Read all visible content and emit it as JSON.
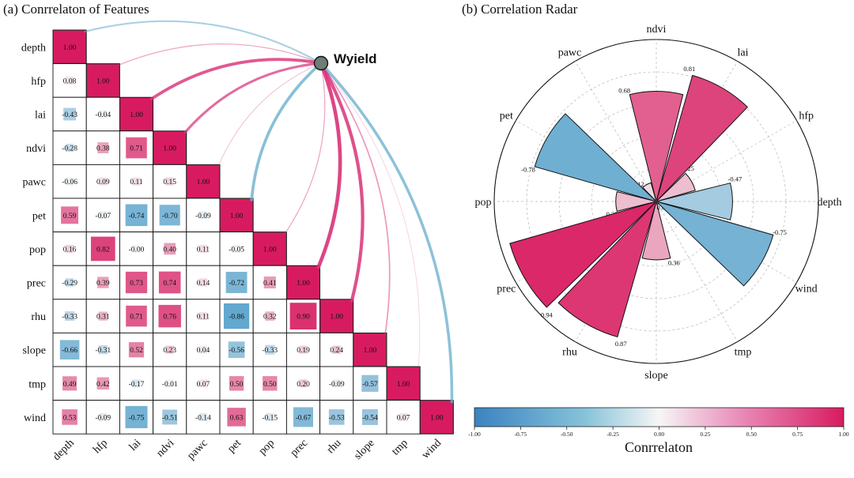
{
  "panel_a_title": "(a) Conrrelaton of Features",
  "panel_b_title": "(b) Correlation Radar",
  "colorbar_label": "Conrrelaton",
  "colorbar_ticks": [
    "-1.00",
    "-0.75",
    "-0.50",
    "-0.25",
    "0.00",
    "0.25",
    "0.50",
    "0.75",
    "1.00"
  ],
  "colors": {
    "negative": "#4a9cc9",
    "neutral": "#f4f4f4",
    "positive": "#d81b60"
  },
  "chart_data": [
    {
      "type": "heatmap",
      "title": "(a) Conrrelaton of Features",
      "variables": [
        "depth",
        "hfp",
        "lai",
        "ndvi",
        "pawc",
        "pet",
        "pop",
        "prec",
        "rhu",
        "slope",
        "tmp",
        "wind"
      ],
      "matrix": [
        [
          1.0
        ],
        [
          0.08,
          1.0
        ],
        [
          -0.43,
          -0.04,
          1.0
        ],
        [
          -0.28,
          0.38,
          0.71,
          1.0
        ],
        [
          -0.06,
          0.09,
          0.11,
          0.15,
          1.0
        ],
        [
          0.59,
          -0.07,
          -0.74,
          -0.7,
          -0.09,
          1.0
        ],
        [
          0.16,
          0.82,
          -0.0,
          0.4,
          0.11,
          -0.05,
          1.0
        ],
        [
          -0.29,
          0.39,
          0.73,
          0.74,
          0.14,
          -0.72,
          0.41,
          1.0
        ],
        [
          -0.33,
          0.31,
          0.71,
          0.76,
          0.11,
          -0.86,
          0.32,
          0.9,
          1.0
        ],
        [
          -0.66,
          -0.31,
          0.52,
          0.23,
          0.04,
          -0.56,
          -0.33,
          0.19,
          0.24,
          1.0
        ],
        [
          0.49,
          0.42,
          -0.17,
          -0.01,
          0.07,
          0.5,
          0.5,
          0.2,
          -0.09,
          -0.57,
          1.0
        ],
        [
          0.53,
          -0.09,
          -0.75,
          -0.51,
          -0.14,
          0.63,
          -0.15,
          -0.67,
          -0.53,
          -0.54,
          0.07,
          1.0
        ]
      ],
      "target": {
        "label": "Wyield"
      },
      "target_correlations": [
        -0.47,
        0.25,
        0.81,
        0.68,
        0.12,
        -0.78,
        0.25,
        0.94,
        0.87,
        0.36,
        0.01,
        -0.75
      ]
    },
    {
      "type": "polar-bar",
      "title": "(b) Correlation Radar",
      "categories": [
        "depth",
        "hfp",
        "lai",
        "ndvi",
        "pawc",
        "pet",
        "pop",
        "prec",
        "rhu",
        "slope",
        "tmp",
        "wind"
      ],
      "values": [
        -0.47,
        0.25,
        0.81,
        0.68,
        0.12,
        -0.78,
        0.25,
        0.94,
        0.87,
        0.36,
        0.01,
        -0.75
      ],
      "value_labels": [
        "-0.47",
        "0.25",
        "0.81",
        "0.68",
        "0.12",
        "-0.78",
        "0.25",
        "0.94",
        "0.87",
        "0.36",
        "0.01",
        "-0.75"
      ],
      "radial_range": [
        0,
        1
      ]
    }
  ]
}
